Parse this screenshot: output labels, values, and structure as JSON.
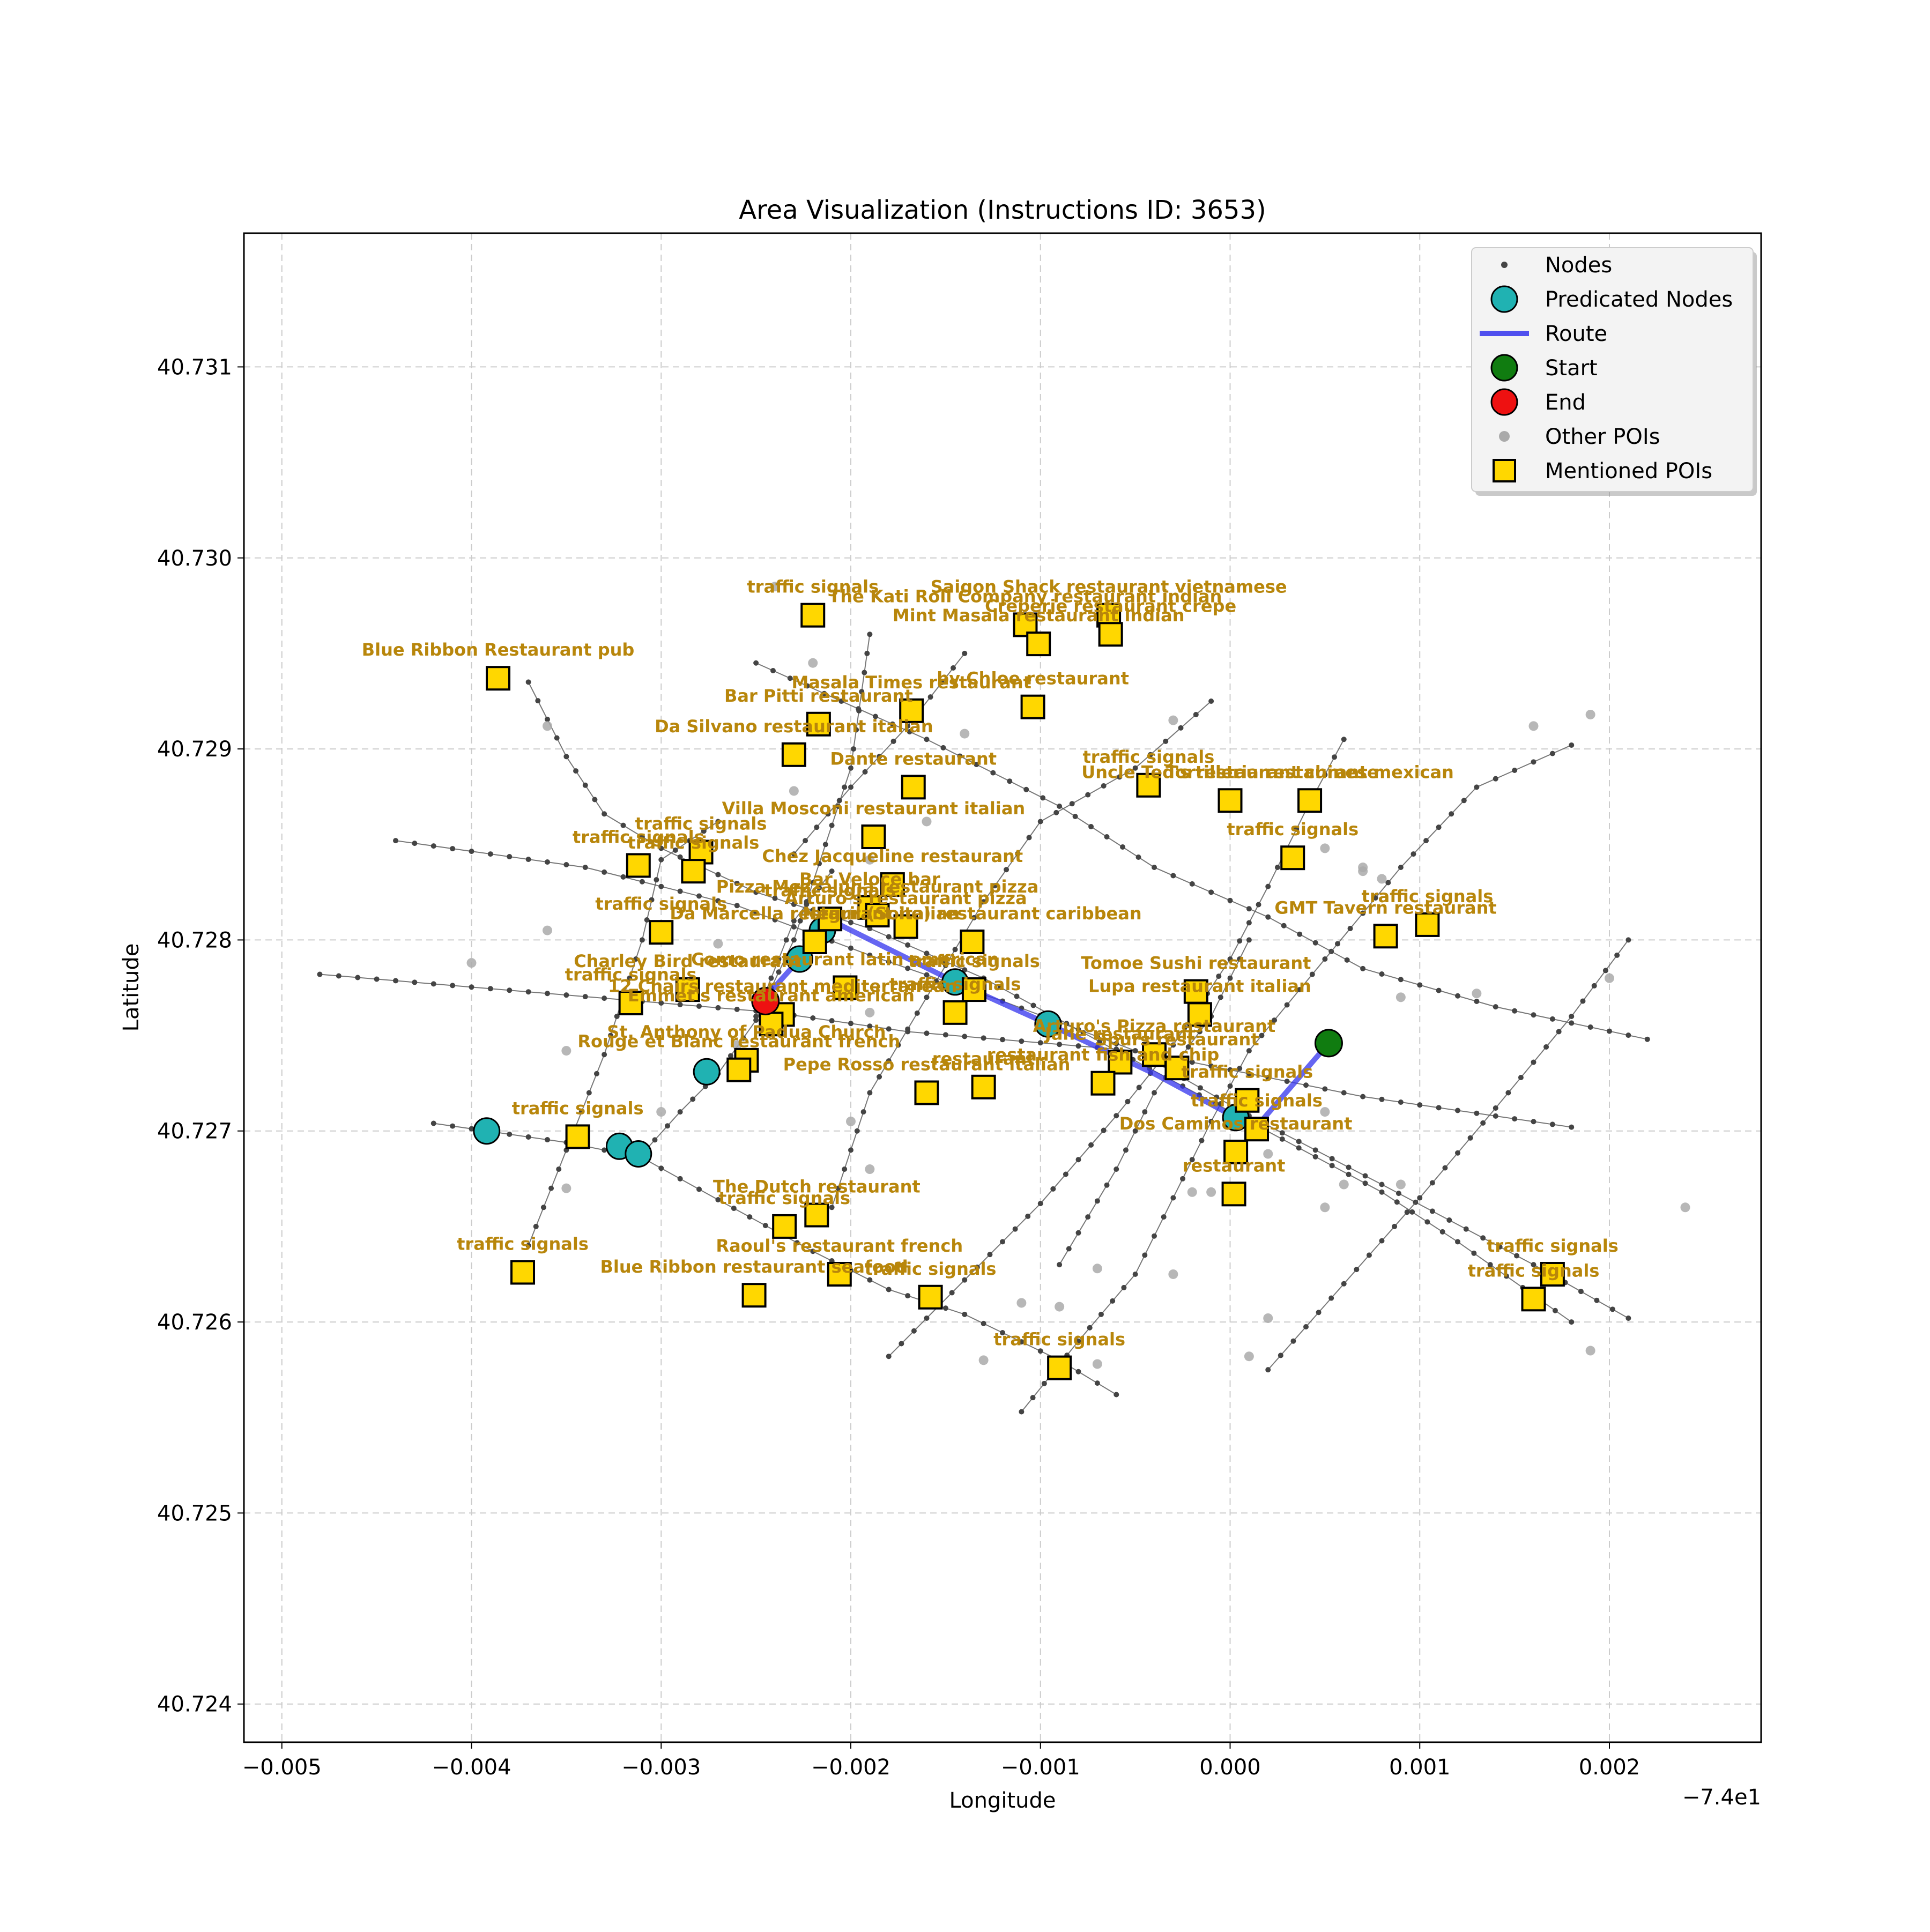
{
  "chart_data": {
    "type": "scatter",
    "title": "Area Visualization (Instructions ID: 3653)",
    "xlabel": "Longitude",
    "ylabel": "Latitude",
    "offset_label": "−7.4e1",
    "xlim": [
      -0.0052,
      0.0028
    ],
    "ylim": [
      40.7238,
      40.7317
    ],
    "grid": true,
    "x_ticks": [
      -0.005,
      -0.004,
      -0.003,
      -0.002,
      -0.001,
      0.0,
      0.001,
      0.002
    ],
    "x_tick_labels": [
      "−0.005",
      "−0.004",
      "−0.003",
      "−0.002",
      "−0.001",
      "0.000",
      "0.001",
      "0.002"
    ],
    "y_ticks": [
      40.724,
      40.725,
      40.726,
      40.727,
      40.728,
      40.729,
      40.73,
      40.731
    ],
    "y_tick_labels": [
      "40.724",
      "40.725",
      "40.726",
      "40.727",
      "40.728",
      "40.729",
      "40.730",
      "40.731"
    ],
    "legend": {
      "position": "top-right",
      "entries": [
        "Nodes",
        "Predicated Nodes",
        "Route",
        "Start",
        "End",
        "Other POIs",
        "Mentioned POIs"
      ]
    },
    "colors": {
      "node": "#444444",
      "edge": "#555555",
      "predicted": "#20b2b2",
      "route": "#3333ee",
      "start": "#107c10",
      "end": "#ee1111",
      "other_poi": "#aaaaaa",
      "poi_fill": "#ffd700",
      "poi_label": "#b8860b",
      "grid": "#cccccc"
    },
    "streets": [
      [
        [
          -0.0048,
          40.72782
        ],
        [
          -0.0024,
          40.72762
        ],
        [
          -0.0017,
          40.72752
        ],
        [
          -0.0005,
          40.72742
        ],
        [
          0.0007,
          40.72718
        ],
        [
          0.0018,
          40.72702
        ]
      ],
      [
        [
          -0.0044,
          40.72852
        ],
        [
          -0.0034,
          40.72838
        ],
        [
          -0.0026,
          40.72818
        ],
        [
          -0.0019,
          40.72792
        ],
        [
          -0.0012,
          40.72768
        ],
        [
          -0.0005,
          40.72742
        ],
        [
          0.0001,
          40.72708
        ],
        [
          0.0008,
          40.72672
        ],
        [
          0.0016,
          40.7263
        ],
        [
          0.0021,
          40.72602
        ]
      ],
      [
        [
          -0.0042,
          40.72704
        ],
        [
          -0.0035,
          40.72694
        ],
        [
          -0.0031,
          40.72686
        ],
        [
          -0.0027,
          40.72664
        ],
        [
          -0.0022,
          40.72637
        ],
        [
          -0.0018,
          40.72617
        ],
        [
          -0.0014,
          40.72604
        ],
        [
          -0.0009,
          40.7258
        ],
        [
          -0.0006,
          40.72562
        ]
      ],
      [
        [
          -0.0025,
          40.72945
        ],
        [
          -0.0016,
          40.72905
        ],
        [
          -0.0009,
          40.7287
        ],
        [
          -0.0004,
          40.72838
        ],
        [
          0.0002,
          40.72812
        ],
        [
          0.0007,
          40.72785
        ],
        [
          0.0014,
          40.72765
        ],
        [
          0.0022,
          40.72748
        ]
      ],
      [
        [
          -0.0037,
          40.72935
        ],
        [
          -0.0035,
          40.72896
        ],
        [
          -0.0033,
          40.72866
        ],
        [
          -0.003,
          40.72848
        ],
        [
          -0.0025,
          40.72825
        ],
        [
          -0.0019,
          40.72806
        ],
        [
          -0.0013,
          40.7278
        ],
        [
          -0.0006,
          40.72742
        ],
        [
          0.0001,
          40.72705
        ],
        [
          0.0008,
          40.72668
        ],
        [
          0.0012,
          40.72642
        ],
        [
          0.0018,
          40.726
        ]
      ],
      [
        [
          -0.0037,
          40.7264
        ],
        [
          -0.0035,
          40.7269
        ],
        [
          -0.0033,
          40.7274
        ],
        [
          -0.0031,
          40.728
        ],
        [
          -0.003,
          40.72842
        ],
        [
          -0.0027,
          40.72862
        ]
      ],
      [
        [
          -0.0031,
          40.72688
        ],
        [
          -0.0029,
          40.7271
        ],
        [
          -0.0027,
          40.7273
        ],
        [
          -0.0025,
          40.72758
        ],
        [
          -0.0023,
          40.728
        ],
        [
          -0.0022,
          40.7283
        ],
        [
          -0.002,
          40.7289
        ],
        [
          -0.0019,
          40.7296
        ]
      ],
      [
        [
          -0.0025,
          40.7276
        ],
        [
          -0.0023,
          40.7281
        ],
        [
          -0.0021,
          40.72836
        ]
      ],
      [
        [
          -0.0018,
          40.72582
        ],
        [
          -0.0014,
          40.72622
        ],
        [
          -0.001,
          40.72662
        ],
        [
          -0.0006,
          40.72708
        ],
        [
          -0.0003,
          40.72745
        ],
        [
          0.0,
          40.7279
        ],
        [
          0.0002,
          40.72828
        ],
        [
          0.0004,
          40.72868
        ],
        [
          0.0006,
          40.72905
        ]
      ],
      [
        [
          -0.0011,
          40.72553
        ],
        [
          -0.0008,
          40.7259
        ],
        [
          -0.0005,
          40.72625
        ],
        [
          -0.0003,
          40.72665
        ],
        [
          -0.0001,
          40.72705
        ],
        [
          0.0001,
          40.72742
        ],
        [
          0.0005,
          40.7279
        ],
        [
          0.0009,
          40.72838
        ],
        [
          0.0013,
          40.7288
        ],
        [
          0.0018,
          40.72902
        ]
      ],
      [
        [
          0.0002,
          40.72575
        ],
        [
          0.0006,
          40.7262
        ],
        [
          0.001,
          40.72665
        ],
        [
          0.0014,
          40.72712
        ],
        [
          0.0018,
          40.7276
        ],
        [
          0.0021,
          40.728
        ]
      ],
      [
        [
          -0.0021,
          40.7266
        ],
        [
          -0.0019,
          40.7272
        ],
        [
          -0.0016,
          40.7277
        ],
        [
          -0.0013,
          40.7282
        ],
        [
          -0.001,
          40.72862
        ],
        [
          -0.0005,
          40.7289
        ],
        [
          -0.0001,
          40.72925
        ]
      ],
      [
        [
          -0.0023,
          40.72845
        ],
        [
          -0.002,
          40.7288
        ],
        [
          -0.0017,
          40.72912
        ],
        [
          -0.0014,
          40.7295
        ]
      ],
      [
        [
          -0.0009,
          40.7263
        ],
        [
          -0.0006,
          40.7268
        ],
        [
          -0.0004,
          40.7272
        ],
        [
          -0.0001,
          40.7276
        ],
        [
          0.0001,
          40.728
        ]
      ]
    ],
    "other_pois": [
      [
        -0.0024,
        40.72985
      ],
      [
        -0.0022,
        40.72945
      ],
      [
        -0.0014,
        40.72908
      ],
      [
        -0.0036,
        40.72912
      ],
      [
        -0.0023,
        40.72878
      ],
      [
        -0.0016,
        40.72862
      ],
      [
        -0.0019,
        40.72842
      ],
      [
        -0.0036,
        40.72805
      ],
      [
        -0.004,
        40.72788
      ],
      [
        -0.0027,
        40.72798
      ],
      [
        -0.002,
        40.72778
      ],
      [
        -0.0019,
        40.72762
      ],
      [
        -0.0026,
        40.72745
      ],
      [
        -0.0035,
        40.72742
      ],
      [
        -0.002,
        40.72705
      ],
      [
        -0.003,
        40.7271
      ],
      [
        -0.0035,
        40.7267
      ],
      [
        -0.0019,
        40.7268
      ],
      [
        -0.0011,
        40.7261
      ],
      [
        -0.0009,
        40.72608
      ],
      [
        -0.0013,
        40.7258
      ],
      [
        -0.0007,
        40.72628
      ],
      [
        -0.0003,
        40.72625
      ],
      [
        -0.0007,
        40.72578
      ],
      [
        0.0002,
        40.72602
      ],
      [
        0.0001,
        40.72582
      ],
      [
        -0.0002,
        40.72668
      ],
      [
        0.0006,
        40.72672
      ],
      [
        0.0005,
        40.7266
      ],
      [
        0.0009,
        40.72672
      ],
      [
        0.0005,
        40.7271
      ],
      [
        0.0003,
        40.72842
      ],
      [
        0.0005,
        40.72848
      ],
      [
        0.0007,
        40.72838
      ],
      [
        0.0008,
        40.72832
      ],
      [
        0.0007,
        40.72836
      ],
      [
        0.0009,
        40.7277
      ],
      [
        0.0013,
        40.72772
      ],
      [
        0.002,
        40.7278
      ],
      [
        0.0016,
        40.72912
      ],
      [
        0.0019,
        40.72918
      ],
      [
        0.0024,
        40.7266
      ],
      [
        0.0019,
        40.72585
      ],
      [
        -0.0003,
        40.72915
      ],
      [
        0.0,
        40.7287
      ],
      [
        -0.0001,
        40.72668
      ],
      [
        0.0001,
        40.72712
      ],
      [
        0.0002,
        40.72688
      ]
    ],
    "predicted_nodes": [
      [
        -0.00392,
        40.727
      ],
      [
        -0.00322,
        40.72692
      ],
      [
        -0.00312,
        40.72688
      ],
      [
        -0.00276,
        40.72731
      ],
      [
        -0.00227,
        40.7279
      ],
      [
        -0.00215,
        40.72805
      ],
      [
        -0.00145,
        40.72778
      ],
      [
        -0.00096,
        40.72756
      ],
      [
        3e-05,
        40.72707
      ],
      [
        0.00052,
        40.72746
      ]
    ],
    "route": [
      [
        -0.00245,
        40.7277
      ],
      [
        -0.00227,
        40.7279
      ],
      [
        -0.00215,
        40.72805
      ],
      [
        -0.0021,
        40.7281
      ],
      [
        -0.00145,
        40.72778
      ],
      [
        -0.00096,
        40.72756
      ],
      [
        -0.0004,
        40.7273
      ],
      [
        3e-05,
        40.72707
      ],
      [
        0.00012,
        40.727
      ],
      [
        0.00052,
        40.72746
      ]
    ],
    "start": [
      0.00052,
      40.72746
    ],
    "end": [
      -0.00245,
      40.72768
    ],
    "mentioned_pois": [
      {
        "name": "traffic signals",
        "lon": -0.0022,
        "lat": 40.7297
      },
      {
        "name": "The Kati Roll Company restaurant indian",
        "lon": -0.00108,
        "lat": 40.72965
      },
      {
        "name": "Saigon Shack restaurant vietnamese",
        "lon": -0.00064,
        "lat": 40.7297
      },
      {
        "name": "Creperie restaurant crepe",
        "lon": -0.00063,
        "lat": 40.7296
      },
      {
        "name": "Mint Masala restaurant indian",
        "lon": -0.00101,
        "lat": 40.72955
      },
      {
        "name": "Blue Ribbon Restaurant pub",
        "lon": -0.00386,
        "lat": 40.72937
      },
      {
        "name": "by Chloe restaurant",
        "lon": -0.00104,
        "lat": 40.72922
      },
      {
        "name": "Masala Times restaurant",
        "lon": -0.00168,
        "lat": 40.7292
      },
      {
        "name": "Bar Pitti restaurant",
        "lon": -0.00217,
        "lat": 40.72913
      },
      {
        "name": "Da Silvano restaurant italian",
        "lon": -0.0023,
        "lat": 40.72897
      },
      {
        "name": "Dante restaurant",
        "lon": -0.00167,
        "lat": 40.7288
      },
      {
        "name": "traffic signals",
        "lon": -0.00043,
        "lat": 40.72881
      },
      {
        "name": "Uncle Ted's restaurant chinese",
        "lon": 0.0,
        "lat": 40.72873
      },
      {
        "name": "Tortilleria restaurant mexican",
        "lon": 0.00042,
        "lat": 40.72873
      },
      {
        "name": "Villa Mosconi restaurant italian",
        "lon": -0.00188,
        "lat": 40.72854
      },
      {
        "name": "traffic signals",
        "lon": -0.00279,
        "lat": 40.72846
      },
      {
        "name": "traffic signals",
        "lon": -0.00312,
        "lat": 40.72839
      },
      {
        "name": "traffic signals",
        "lon": -0.00283,
        "lat": 40.72836
      },
      {
        "name": "traffic signals",
        "lon": 0.00033,
        "lat": 40.72843
      },
      {
        "name": "Chez Jacqueline restaurant",
        "lon": -0.00178,
        "lat": 40.72829
      },
      {
        "name": "Bar Veloce bar",
        "lon": -0.0019,
        "lat": 40.72817
      },
      {
        "name": "Pizza Mezzaluna restaurant pizza",
        "lon": -0.00186,
        "lat": 40.72813
      },
      {
        "name": "Arturo's restaurant pizza",
        "lon": -0.00171,
        "lat": 40.72807
      },
      {
        "name": "Negril (Soho) restaurant caribbean",
        "lon": -0.00136,
        "lat": 40.72799
      },
      {
        "name": "traffic signals",
        "lon": -0.00211,
        "lat": 40.72811
      },
      {
        "name": "traffic signals",
        "lon": -0.003,
        "lat": 40.72804
      },
      {
        "name": "GMT Tavern restaurant",
        "lon": 0.00082,
        "lat": 40.72802
      },
      {
        "name": "traffic signals",
        "lon": 0.00104,
        "lat": 40.72808
      },
      {
        "name": "Da Marcella restaurant italian",
        "lon": -0.00219,
        "lat": 40.72799
      },
      {
        "name": "traffic signals",
        "lon": -0.00135,
        "lat": 40.72774
      },
      {
        "name": "Tomoe Sushi restaurant",
        "lon": -0.00018,
        "lat": 40.72773
      },
      {
        "name": "Charley Bird restaurant",
        "lon": -0.00286,
        "lat": 40.72774
      },
      {
        "name": "Como restaurant latin american",
        "lon": -0.00203,
        "lat": 40.72775
      },
      {
        "name": "traffic signals",
        "lon": -0.00316,
        "lat": 40.72767
      },
      {
        "name": "Lupa restaurant italian",
        "lon": -0.00016,
        "lat": 40.72761
      },
      {
        "name": "12 Chairs restaurant mediterranean",
        "lon": -0.00236,
        "lat": 40.72761
      },
      {
        "name": "traffic signals",
        "lon": -0.00145,
        "lat": 40.72762
      },
      {
        "name": "Emmet's restaurant american",
        "lon": -0.00242,
        "lat": 40.72756
      },
      {
        "name": "Arturo's Pizza restaurant",
        "lon": -0.0004,
        "lat": 40.7274
      },
      {
        "name": "Jane restaurant",
        "lon": -0.00058,
        "lat": 40.72736
      },
      {
        "name": "St. Anthony of Padua Church",
        "lon": -0.00255,
        "lat": 40.72737
      },
      {
        "name": "Rouge et Blanc restaurant french",
        "lon": -0.00259,
        "lat": 40.72732
      },
      {
        "name": "Pepe Rosso restaurant italian",
        "lon": -0.0016,
        "lat": 40.7272
      },
      {
        "name": "restaurant",
        "lon": -0.0013,
        "lat": 40.72723
      },
      {
        "name": "restaurant fish and chip",
        "lon": -0.00067,
        "lat": 40.72725
      },
      {
        "name": "Spurs restaurant",
        "lon": -0.00028,
        "lat": 40.72733
      },
      {
        "name": "traffic signals",
        "lon": 9e-05,
        "lat": 40.72716
      },
      {
        "name": "traffic signals",
        "lon": 0.00014,
        "lat": 40.72701
      },
      {
        "name": "traffic signals",
        "lon": -0.00344,
        "lat": 40.72697
      },
      {
        "name": "Dos Caminos restaurant",
        "lon": 3e-05,
        "lat": 40.72689
      },
      {
        "name": "restaurant",
        "lon": 2e-05,
        "lat": 40.72667
      },
      {
        "name": "The Dutch restaurant",
        "lon": -0.00218,
        "lat": 40.72656
      },
      {
        "name": "traffic signals",
        "lon": -0.00235,
        "lat": 40.7265
      },
      {
        "name": "Raoul's restaurant french",
        "lon": -0.00206,
        "lat": 40.72625
      },
      {
        "name": "Blue Ribbon restaurant seafood",
        "lon": -0.00251,
        "lat": 40.72614
      },
      {
        "name": "traffic signals",
        "lon": -0.00158,
        "lat": 40.72613
      },
      {
        "name": "traffic signals",
        "lon": -0.00373,
        "lat": 40.72626
      },
      {
        "name": "traffic signals",
        "lon": 0.0017,
        "lat": 40.72625
      },
      {
        "name": "traffic signals",
        "lon": 0.0016,
        "lat": 40.72612
      },
      {
        "name": "traffic signals",
        "lon": -0.0009,
        "lat": 40.72576
      }
    ]
  }
}
